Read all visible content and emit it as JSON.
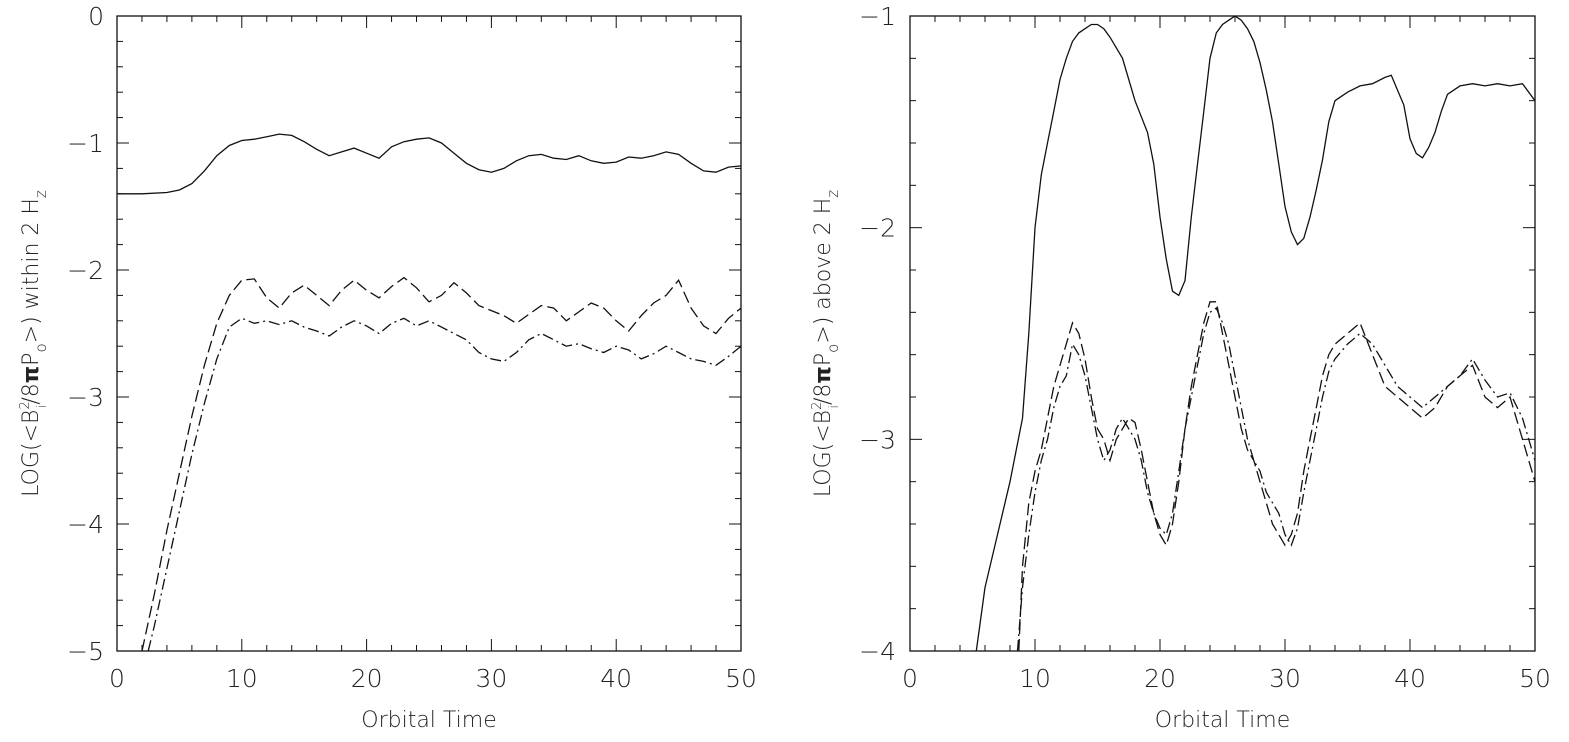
{
  "chart_data": [
    {
      "type": "line",
      "xlabel": "Orbital Time",
      "ylabel_parts": {
        "prefix": "LOG(<B",
        "sup": "2",
        "sub_i": "i",
        "mid": "/8",
        "pi": "π",
        "p": "P",
        "sub_o": "o",
        "suffix": ">) within 2 H",
        "sub_z": "z"
      },
      "xlim": [
        0,
        50
      ],
      "ylim": [
        -5,
        0
      ],
      "xticks": [
        0,
        10,
        20,
        30,
        40,
        50
      ],
      "yticks": [
        0,
        -1,
        -2,
        -3,
        -4,
        -5
      ],
      "grid": false,
      "series": [
        {
          "style": "solid",
          "x": [
            0,
            2,
            4,
            5,
            6,
            7,
            8,
            9,
            10,
            11,
            12,
            13,
            14,
            15,
            16,
            17,
            18,
            19,
            20,
            21,
            22,
            23,
            24,
            25,
            26,
            27,
            28,
            29,
            30,
            31,
            32,
            33,
            34,
            35,
            36,
            37,
            38,
            39,
            40,
            41,
            42,
            43,
            44,
            45,
            46,
            47,
            48,
            49,
            50
          ],
          "y": [
            -1.4,
            -1.4,
            -1.39,
            -1.37,
            -1.32,
            -1.22,
            -1.1,
            -1.02,
            -0.98,
            -0.97,
            -0.95,
            -0.93,
            -0.94,
            -0.99,
            -1.05,
            -1.1,
            -1.07,
            -1.04,
            -1.08,
            -1.12,
            -1.03,
            -0.99,
            -0.97,
            -0.96,
            -1.0,
            -1.08,
            -1.16,
            -1.21,
            -1.23,
            -1.2,
            -1.14,
            -1.1,
            -1.09,
            -1.12,
            -1.13,
            -1.1,
            -1.14,
            -1.16,
            -1.15,
            -1.11,
            -1.12,
            -1.1,
            -1.07,
            -1.09,
            -1.16,
            -1.22,
            -1.23,
            -1.19,
            -1.18
          ]
        },
        {
          "style": "dashed",
          "x": [
            2,
            3,
            4,
            5,
            6,
            7,
            8,
            9,
            10,
            11,
            12,
            13,
            14,
            15,
            16,
            17,
            18,
            19,
            20,
            21,
            22,
            23,
            24,
            25,
            26,
            27,
            28,
            29,
            30,
            31,
            32,
            33,
            34,
            35,
            36,
            37,
            38,
            39,
            40,
            41,
            42,
            43,
            44,
            45,
            46,
            47,
            48,
            49,
            50
          ],
          "y": [
            -5.0,
            -4.55,
            -4.05,
            -3.6,
            -3.15,
            -2.75,
            -2.42,
            -2.2,
            -2.08,
            -2.07,
            -2.22,
            -2.3,
            -2.18,
            -2.12,
            -2.2,
            -2.28,
            -2.16,
            -2.08,
            -2.16,
            -2.22,
            -2.13,
            -2.06,
            -2.14,
            -2.25,
            -2.2,
            -2.1,
            -2.18,
            -2.28,
            -2.32,
            -2.36,
            -2.42,
            -2.35,
            -2.28,
            -2.3,
            -2.4,
            -2.33,
            -2.26,
            -2.3,
            -2.4,
            -2.48,
            -2.36,
            -2.26,
            -2.2,
            -2.08,
            -2.3,
            -2.44,
            -2.5,
            -2.38,
            -2.3
          ]
        },
        {
          "style": "dashdot",
          "x": [
            2.5,
            3,
            4,
            5,
            6,
            7,
            8,
            9,
            10,
            11,
            12,
            13,
            14,
            15,
            16,
            17,
            18,
            19,
            20,
            21,
            22,
            23,
            24,
            25,
            26,
            27,
            28,
            29,
            30,
            31,
            32,
            33,
            34,
            35,
            36,
            37,
            38,
            39,
            40,
            41,
            42,
            43,
            44,
            45,
            46,
            47,
            48,
            49,
            50
          ],
          "y": [
            -5.0,
            -4.8,
            -4.35,
            -3.9,
            -3.45,
            -3.05,
            -2.7,
            -2.45,
            -2.38,
            -2.42,
            -2.4,
            -2.43,
            -2.4,
            -2.45,
            -2.48,
            -2.52,
            -2.45,
            -2.4,
            -2.44,
            -2.5,
            -2.42,
            -2.38,
            -2.44,
            -2.4,
            -2.45,
            -2.5,
            -2.55,
            -2.65,
            -2.7,
            -2.72,
            -2.65,
            -2.55,
            -2.5,
            -2.55,
            -2.6,
            -2.58,
            -2.62,
            -2.65,
            -2.6,
            -2.63,
            -2.7,
            -2.66,
            -2.6,
            -2.65,
            -2.7,
            -2.72,
            -2.75,
            -2.68,
            -2.6
          ]
        }
      ]
    },
    {
      "type": "line",
      "xlabel": "Orbital Time",
      "ylabel_parts": {
        "prefix": "LOG(<B",
        "sup": "2",
        "sub_i": "i",
        "mid": "/8",
        "pi": "π",
        "p": "P",
        "sub_o": "o",
        "suffix": ">) above 2 H",
        "sub_z": "z"
      },
      "xlim": [
        0,
        50
      ],
      "ylim": [
        -4,
        -1
      ],
      "xticks": [
        0,
        10,
        20,
        30,
        40,
        50
      ],
      "yticks": [
        -1,
        -2,
        -3,
        -4
      ],
      "grid": false,
      "series": [
        {
          "style": "solid",
          "x": [
            5.3,
            6,
            7,
            8,
            9,
            9.5,
            10,
            10.5,
            11,
            11.5,
            12,
            12.5,
            13,
            13.5,
            14,
            14.5,
            15,
            15.5,
            16,
            17,
            18,
            19,
            19.5,
            20,
            20.5,
            21,
            21.5,
            22,
            22.5,
            23,
            23.5,
            24,
            24.5,
            25,
            25.5,
            26,
            26.5,
            27,
            27.5,
            28,
            28.5,
            29,
            29.5,
            30,
            30.5,
            31,
            31.5,
            32,
            32.5,
            33,
            33.5,
            34,
            35,
            36,
            37,
            38,
            38.5,
            39,
            39.5,
            40,
            40.5,
            41,
            41.5,
            42,
            42.5,
            43,
            44,
            45,
            46,
            47,
            48,
            49,
            50
          ],
          "y": [
            -4.0,
            -3.7,
            -3.45,
            -3.2,
            -2.9,
            -2.5,
            -2.0,
            -1.75,
            -1.6,
            -1.45,
            -1.3,
            -1.2,
            -1.12,
            -1.08,
            -1.06,
            -1.04,
            -1.04,
            -1.06,
            -1.1,
            -1.2,
            -1.4,
            -1.55,
            -1.7,
            -1.95,
            -2.15,
            -2.3,
            -2.32,
            -2.25,
            -1.95,
            -1.7,
            -1.45,
            -1.2,
            -1.08,
            -1.04,
            -1.02,
            -1.0,
            -1.02,
            -1.06,
            -1.12,
            -1.22,
            -1.35,
            -1.5,
            -1.7,
            -1.9,
            -2.02,
            -2.08,
            -2.05,
            -1.95,
            -1.82,
            -1.68,
            -1.5,
            -1.4,
            -1.36,
            -1.33,
            -1.32,
            -1.29,
            -1.28,
            -1.35,
            -1.42,
            -1.58,
            -1.65,
            -1.67,
            -1.62,
            -1.55,
            -1.45,
            -1.37,
            -1.33,
            -1.32,
            -1.33,
            -1.32,
            -1.33,
            -1.32,
            -1.4
          ]
        },
        {
          "style": "dashed",
          "x": [
            8.7,
            9,
            9.5,
            10,
            10.5,
            11,
            11.5,
            12,
            12.5,
            13,
            13.5,
            14,
            14.5,
            15,
            15.5,
            16,
            16.5,
            17,
            17.5,
            18,
            18.5,
            19,
            19.5,
            20,
            20.5,
            21,
            21.5,
            22,
            22.5,
            23,
            23.5,
            24,
            24.5,
            25,
            25.5,
            26,
            26.5,
            27,
            27.5,
            28,
            28.5,
            29,
            29.5,
            30,
            30.5,
            31,
            31.5,
            32,
            32.5,
            33,
            33.5,
            34,
            35,
            36,
            37,
            38,
            39,
            40,
            41,
            42,
            43,
            44,
            45,
            46,
            47,
            48,
            49,
            50
          ],
          "y": [
            -4.0,
            -3.6,
            -3.3,
            -3.15,
            -3.05,
            -2.9,
            -2.75,
            -2.65,
            -2.55,
            -2.45,
            -2.5,
            -2.62,
            -2.8,
            -2.95,
            -3.0,
            -3.1,
            -3.0,
            -2.95,
            -2.9,
            -2.92,
            -3.05,
            -3.2,
            -3.35,
            -3.45,
            -3.5,
            -3.4,
            -3.2,
            -2.95,
            -2.75,
            -2.6,
            -2.45,
            -2.35,
            -2.35,
            -2.5,
            -2.65,
            -2.8,
            -2.95,
            -3.05,
            -3.1,
            -3.2,
            -3.3,
            -3.4,
            -3.45,
            -3.5,
            -3.45,
            -3.35,
            -3.15,
            -3.0,
            -2.85,
            -2.7,
            -2.6,
            -2.55,
            -2.5,
            -2.45,
            -2.6,
            -2.75,
            -2.8,
            -2.85,
            -2.9,
            -2.85,
            -2.75,
            -2.7,
            -2.65,
            -2.8,
            -2.85,
            -2.8,
            -3.0,
            -3.2
          ]
        },
        {
          "style": "dashdot",
          "x": [
            8.6,
            9,
            9.5,
            10,
            10.5,
            11,
            11.5,
            12,
            12.5,
            13,
            13.5,
            14,
            14.5,
            15,
            15.5,
            16,
            16.5,
            17,
            17.5,
            18,
            18.5,
            19,
            19.5,
            20,
            20.5,
            21,
            21.5,
            22,
            22.5,
            23,
            23.5,
            24,
            24.5,
            25,
            25.5,
            26,
            26.5,
            27,
            27.5,
            28,
            28.5,
            29,
            29.5,
            30,
            30.5,
            31,
            31.5,
            32,
            32.5,
            33,
            33.5,
            34,
            35,
            36,
            37,
            38,
            39,
            40,
            41,
            42,
            43,
            44,
            45,
            46,
            47,
            48,
            49,
            50
          ],
          "y": [
            -4.0,
            -3.7,
            -3.45,
            -3.25,
            -3.1,
            -3.0,
            -2.85,
            -2.75,
            -2.7,
            -2.55,
            -2.6,
            -2.7,
            -2.85,
            -3.0,
            -3.1,
            -3.05,
            -2.95,
            -2.9,
            -2.95,
            -3.0,
            -3.1,
            -3.25,
            -3.35,
            -3.42,
            -3.45,
            -3.35,
            -3.15,
            -2.95,
            -2.8,
            -2.65,
            -2.5,
            -2.4,
            -2.38,
            -2.45,
            -2.55,
            -2.7,
            -2.85,
            -3.0,
            -3.1,
            -3.15,
            -3.25,
            -3.3,
            -3.35,
            -3.45,
            -3.5,
            -3.42,
            -3.25,
            -3.1,
            -2.95,
            -2.8,
            -2.68,
            -2.62,
            -2.55,
            -2.5,
            -2.55,
            -2.65,
            -2.75,
            -2.8,
            -2.85,
            -2.8,
            -2.75,
            -2.7,
            -2.62,
            -2.72,
            -2.8,
            -2.78,
            -2.9,
            -3.1
          ]
        }
      ]
    }
  ]
}
